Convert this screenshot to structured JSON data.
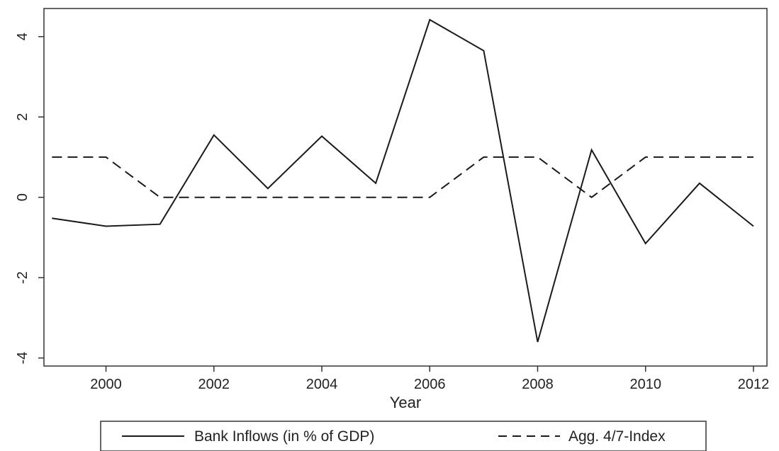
{
  "chart_data": {
    "type": "line",
    "title": "",
    "xlabel": "Year",
    "ylabel": "",
    "x": [
      1999,
      2000,
      2001,
      2002,
      2003,
      2004,
      2005,
      2006,
      2007,
      2008,
      2009,
      2010,
      2011,
      2012
    ],
    "xlim": [
      1998.85,
      2012.25
    ],
    "ylim": [
      -4.2,
      4.7
    ],
    "xticks": [
      2000,
      2002,
      2004,
      2006,
      2008,
      2010,
      2012
    ],
    "yticks": [
      -4,
      -2,
      0,
      2,
      4
    ],
    "grid": false,
    "legend_position": "bottom",
    "series": [
      {
        "name": "Bank Inflows (in % of GDP)",
        "style": "solid",
        "color": "#1a1a1a",
        "values": [
          -0.52,
          -0.72,
          -0.67,
          1.55,
          0.22,
          1.52,
          0.35,
          4.42,
          3.65,
          -3.6,
          1.18,
          -1.15,
          0.35,
          -0.72
        ]
      },
      {
        "name": "Agg. 4/7-Index",
        "style": "dashed",
        "color": "#1a1a1a",
        "values": [
          1,
          1,
          0,
          0,
          0,
          0,
          0,
          0,
          1,
          1,
          0,
          1,
          1,
          1
        ]
      }
    ]
  }
}
